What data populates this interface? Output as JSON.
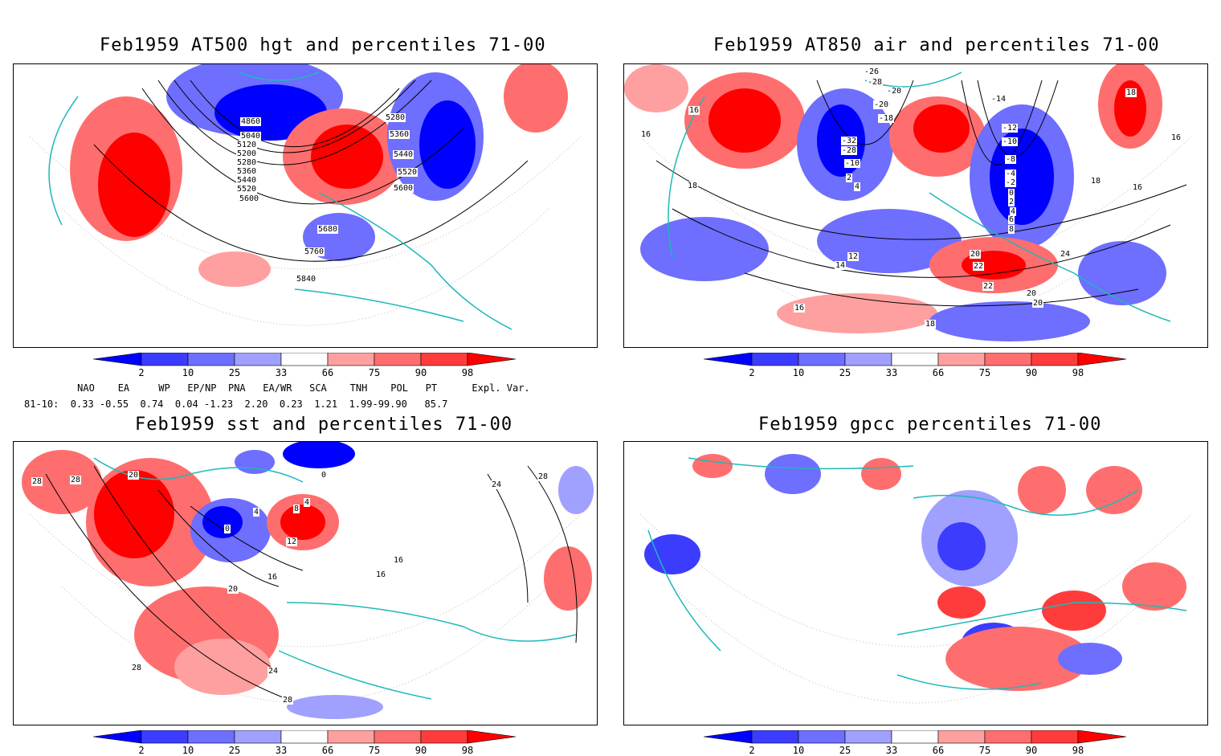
{
  "panels": [
    {
      "title": "Feb1959 AT500 hgt and percentiles 71-00",
      "contour_labels": [
        "4860",
        "5040",
        "5120",
        "5200",
        "5280",
        "5360",
        "5440",
        "5520",
        "5600",
        "5280",
        "5360",
        "5440",
        "5520",
        "5600",
        "5680",
        "5760",
        "5840"
      ]
    },
    {
      "title": "Feb1959 AT850 air and percentiles 71-00",
      "contour_labels": [
        "-26",
        "-28",
        "-20",
        "-18",
        "-20",
        "-14",
        "-12",
        "-10",
        "-8",
        "-4",
        "-2",
        "0",
        "2",
        "4",
        "6",
        "8",
        "-32",
        "-28",
        "-10",
        "2",
        "4",
        "16",
        "16",
        "18",
        "18",
        "20",
        "22",
        "22",
        "24",
        "20",
        "12",
        "14",
        "16",
        "18",
        "20",
        "18",
        "16",
        "16"
      ]
    },
    {
      "title": "Feb1959 sst and percentiles 71-00",
      "contour_labels": [
        "28",
        "28",
        "20",
        "0",
        "4",
        "8",
        "12",
        "4",
        "0",
        "16",
        "16",
        "16",
        "20",
        "24",
        "24",
        "28",
        "28",
        "28"
      ]
    },
    {
      "title": "Feb1959 gpcc percentiles 71-00",
      "contour_labels": []
    }
  ],
  "colorbar": {
    "tick_labels": [
      "2",
      "10",
      "25",
      "33",
      "66",
      "75",
      "90",
      "98"
    ],
    "colors": [
      "#0000ff",
      "#3c3cff",
      "#6e6eff",
      "#a0a0ff",
      "#ffffff",
      "#ffa0a0",
      "#ff6e6e",
      "#ff3c3c",
      "#ff0000"
    ]
  },
  "indices": {
    "header": "     NAO    EA     WP   EP/NP  PNA   EA/WR   SCA    TNH    POL   PT      Expl. Var.",
    "values": "81-10:  0.33 -0.55  0.74  0.04 -1.23  2.20  0.23  1.21  1.99-99.90   85.7"
  }
}
